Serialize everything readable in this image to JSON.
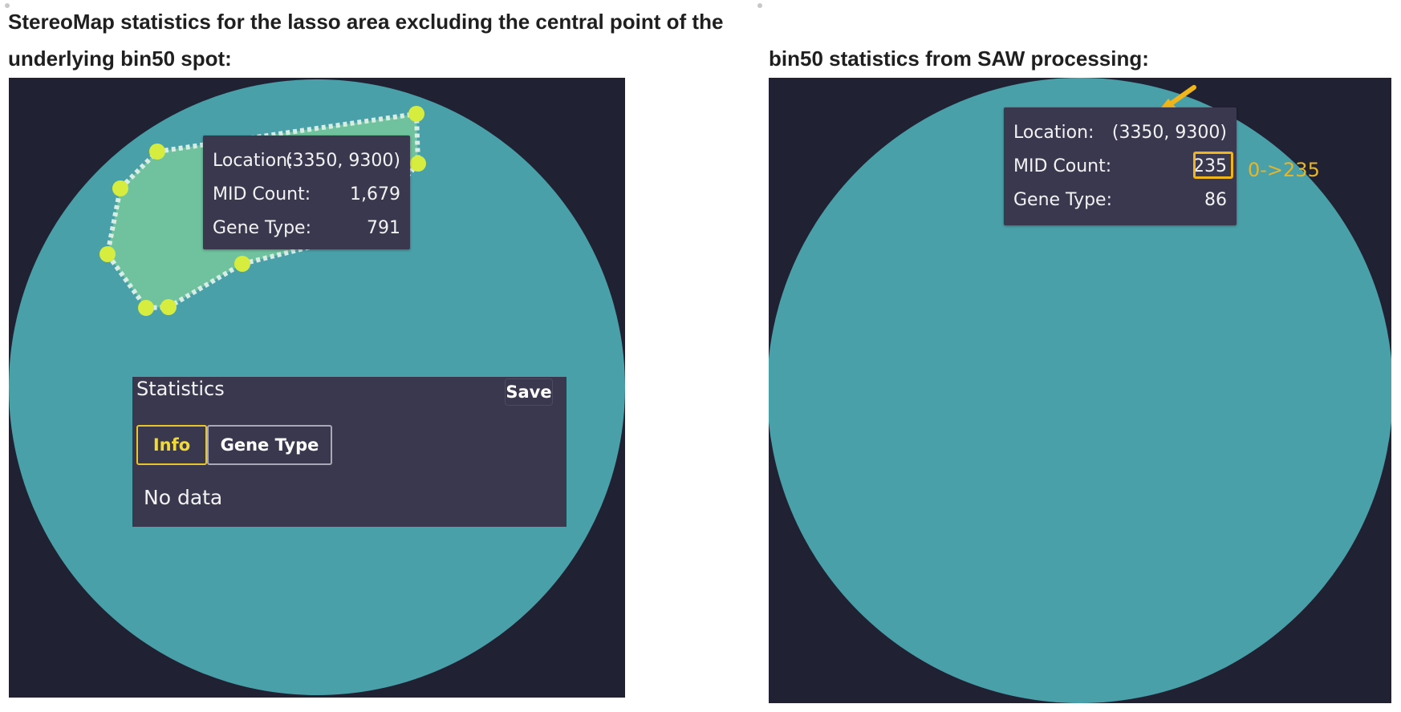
{
  "left": {
    "heading": "StereoMap statistics for the lasso area excluding the central point of the underlying bin50 spot:",
    "tooltip": {
      "location_label": "Location:",
      "location_value": "(3350, 9300)",
      "mid_count_label": "MID Count:",
      "mid_count_value": "1,679",
      "gene_type_label": "Gene Type:",
      "gene_type_value": "791"
    },
    "statistics_panel": {
      "title": "Statistics",
      "save_label": "Save",
      "tabs": [
        {
          "label": "Info",
          "active": true
        },
        {
          "label": "Gene Type",
          "active": false
        }
      ],
      "empty_message": "No data"
    }
  },
  "right": {
    "heading": "bin50 statistics from SAW processing:",
    "tooltip": {
      "location_label": "Location:",
      "location_value": "(3350, 9300)",
      "mid_count_label": "MID Count:",
      "mid_count_value": "235",
      "gene_type_label": "Gene Type:",
      "gene_type_value": "86"
    },
    "annotation": "0->235"
  },
  "colors": {
    "background": "#202233",
    "spot": "#4aa0a8",
    "lasso_fill": "#72c49c",
    "lasso_vertex": "#d6ec3f",
    "tooltip_bg": "#3a384e",
    "highlight": "#f0b51b",
    "annotation": "#e6b62a"
  },
  "icons": {
    "arrow": "arrow-pointer-icon"
  }
}
